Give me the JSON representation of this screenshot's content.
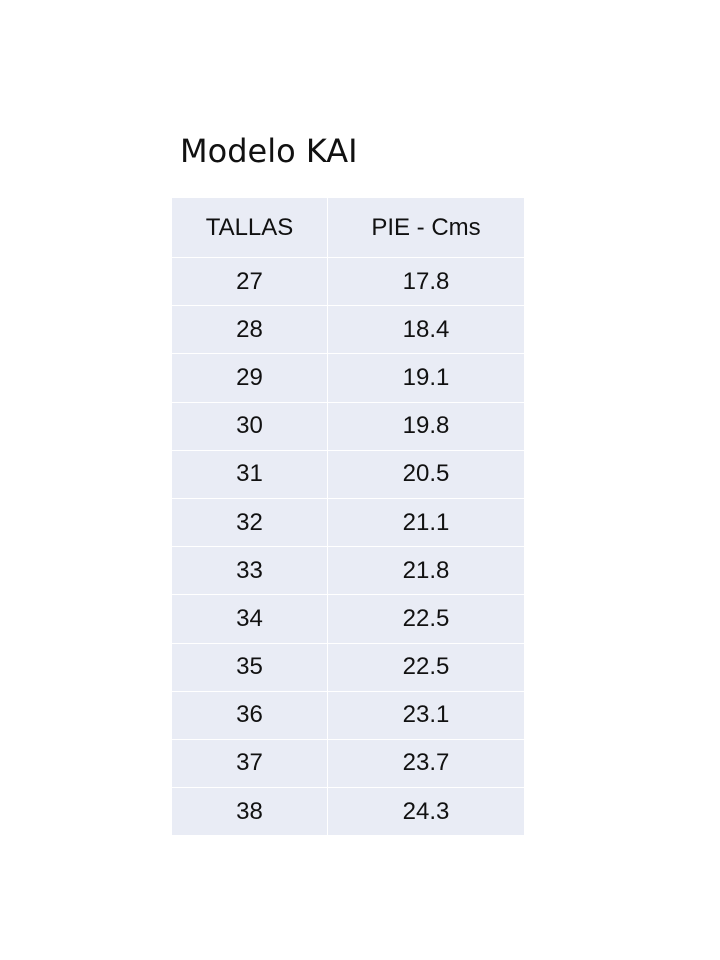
{
  "title": "Modelo KAI",
  "table": {
    "header": [
      "TALLAS",
      "PIE - Cms"
    ],
    "rows": [
      [
        "27",
        "17.8"
      ],
      [
        "28",
        "18.4"
      ],
      [
        "29",
        "19.1"
      ],
      [
        "30",
        "19.8"
      ],
      [
        "31",
        "20.5"
      ],
      [
        "32",
        "21.1"
      ],
      [
        "33",
        "21.8"
      ],
      [
        "34",
        "22.5"
      ],
      [
        "35",
        "22.5"
      ],
      [
        "36",
        "23.1"
      ],
      [
        "37",
        "23.7"
      ],
      [
        "38",
        "24.3"
      ]
    ]
  }
}
